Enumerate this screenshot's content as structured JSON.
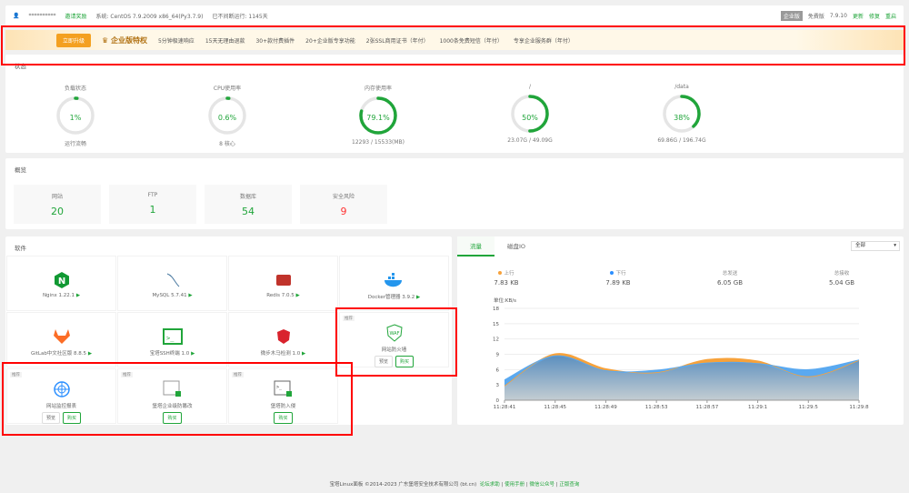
{
  "topbar": {
    "user": "**********",
    "invite": "邀请奖励",
    "system": "系统: CentOS 7.9.2009 x86_64(Py3.7.9)",
    "uptime": "已不间断运行: 1145天",
    "edition": "企业版",
    "free_label": "免費版",
    "version": "7.9.10",
    "update": "更新",
    "repair": "修复",
    "restart": "重启"
  },
  "banner": {
    "upgrade": "立即升级",
    "title": "企业版特权",
    "items": [
      "5分钟极速响应",
      "15天无理由退款",
      "30+款付费插件",
      "20+企业版专享功能",
      "2张SSL商用证书（年付）",
      "1000条免费短信（年付）",
      "专享企业服务群（年付）"
    ]
  },
  "status": {
    "title": "状态",
    "gauges": [
      {
        "label": "负载状态",
        "value": "1%",
        "percent": 1,
        "sub": "运行流畅"
      },
      {
        "label": "CPU使用率",
        "value": "0.6%",
        "percent": 0.6,
        "sub": "8 核心"
      },
      {
        "label": "内存使用率",
        "value": "79.1%",
        "percent": 79.1,
        "sub": "12293 / 15533(MB)"
      },
      {
        "label": "/",
        "value": "50%",
        "percent": 50,
        "sub": "23.07G / 49.09G"
      },
      {
        "label": "/data",
        "value": "38%",
        "percent": 38,
        "sub": "69.86G / 196.74G"
      }
    ]
  },
  "overview": {
    "title": "概览",
    "cards": [
      {
        "label": "网站",
        "value": "20",
        "color": "#20a53a"
      },
      {
        "label": "FTP",
        "value": "1",
        "color": "#20a53a"
      },
      {
        "label": "数据库",
        "value": "54",
        "color": "#20a53a"
      },
      {
        "label": "安全风险",
        "value": "9",
        "color": "#ff3333"
      }
    ]
  },
  "software": {
    "title": "软件",
    "tag": "推荐",
    "preview": "预览",
    "buy": "购买",
    "items": [
      {
        "name": "Nginx 1.22.1",
        "icon": "nginx-icon"
      },
      {
        "name": "MySQL 5.7.41",
        "icon": "mysql-icon"
      },
      {
        "name": "Redis 7.0.5",
        "icon": "redis-icon"
      },
      {
        "name": "Docker管理器 3.9.2",
        "icon": "docker-icon"
      },
      {
        "name": "GitLab中文社区版 8.8.5",
        "icon": "gitlab-icon"
      },
      {
        "name": "宝塔SSH终端 1.0",
        "icon": "terminal-icon"
      },
      {
        "name": "微步木马检测 1.0",
        "icon": "shield-icon"
      },
      {
        "name": "网站防火墙",
        "icon": "waf-icon",
        "recommend": true,
        "preview": true
      },
      {
        "name": "网站监控报表",
        "icon": "monitor-icon",
        "recommend": true,
        "preview": true
      },
      {
        "name": "堡塔企业级防篡改",
        "icon": "tamper-icon",
        "recommend": true
      },
      {
        "name": "堡塔防入侵",
        "icon": "intrusion-icon",
        "recommend": true
      }
    ]
  },
  "traffic": {
    "tabs": [
      "流量",
      "磁盘IO"
    ],
    "select": "全部",
    "stats": [
      {
        "label": "上行",
        "value": "7.83 KB",
        "color": "#f7a23b"
      },
      {
        "label": "下行",
        "value": "7.89 KB",
        "color": "#2b8fff"
      },
      {
        "label": "总发送",
        "value": "6.05 GB"
      },
      {
        "label": "总接收",
        "value": "5.04 GB"
      }
    ]
  },
  "chart_data": {
    "type": "area",
    "ylabel": "单位:KB/s",
    "ylim": [
      0,
      18
    ],
    "yticks": [
      0,
      3,
      6,
      9,
      12,
      15,
      18
    ],
    "grid": true,
    "categories": [
      "11:28:41",
      "11:28:45",
      "11:28:49",
      "11:28:53",
      "11:28:57",
      "11:29:1",
      "11:29:5",
      "11:29:8"
    ],
    "series": [
      {
        "name": "上行",
        "color": "#f7a23b",
        "values": [
          2.8,
          9.1,
          6.2,
          5.4,
          8.0,
          7.7,
          4.6,
          7.8
        ]
      },
      {
        "name": "下行",
        "color": "#5aa9f0",
        "values": [
          4.0,
          8.7,
          5.8,
          5.9,
          7.3,
          7.2,
          6.0,
          7.9
        ]
      }
    ]
  },
  "footer": {
    "copyright": "宝塔Linux面板 ©2014-2023 广东堡塔安全技术有限公司 (bt.cn)",
    "links": [
      "论坛求助",
      "使用手册",
      "微信公众号",
      "正版查询"
    ]
  }
}
